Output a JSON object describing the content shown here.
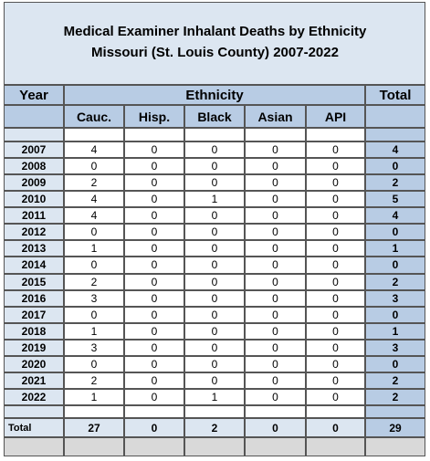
{
  "title": {
    "line1": "Medical Examiner Inhalant Deaths by Ethnicity",
    "line2": "Missouri (St. Louis County)  2007-2022"
  },
  "header": {
    "year": "Year",
    "group": "Ethnicity",
    "total": "Total",
    "columns": [
      "Cauc.",
      "Hisp.",
      "Black",
      "Asian",
      "API"
    ]
  },
  "rows": [
    [
      "2007",
      "4",
      "0",
      "0",
      "0",
      "0",
      "4"
    ],
    [
      "2008",
      "0",
      "0",
      "0",
      "0",
      "0",
      "0"
    ],
    [
      "2009",
      "2",
      "0",
      "0",
      "0",
      "0",
      "2"
    ],
    [
      "2010",
      "4",
      "0",
      "1",
      "0",
      "0",
      "5"
    ],
    [
      "2011",
      "4",
      "0",
      "0",
      "0",
      "0",
      "4"
    ],
    [
      "2012",
      "0",
      "0",
      "0",
      "0",
      "0",
      "0"
    ],
    [
      "2013",
      "1",
      "0",
      "0",
      "0",
      "0",
      "1"
    ],
    [
      "2014",
      "0",
      "0",
      "0",
      "0",
      "0",
      "0"
    ],
    [
      "2015",
      "2",
      "0",
      "0",
      "0",
      "0",
      "2"
    ],
    [
      "2016",
      "3",
      "0",
      "0",
      "0",
      "0",
      "3"
    ],
    [
      "2017",
      "0",
      "0",
      "0",
      "0",
      "0",
      "0"
    ],
    [
      "2018",
      "1",
      "0",
      "0",
      "0",
      "0",
      "1"
    ],
    [
      "2019",
      "3",
      "0",
      "0",
      "0",
      "0",
      "3"
    ],
    [
      "2020",
      "0",
      "0",
      "0",
      "0",
      "0",
      "0"
    ],
    [
      "2021",
      "2",
      "0",
      "0",
      "0",
      "0",
      "2"
    ],
    [
      "2022",
      "1",
      "0",
      "1",
      "0",
      "0",
      "2"
    ]
  ],
  "totals": [
    "Total",
    "27",
    "0",
    "2",
    "0",
    "0",
    "29"
  ]
}
